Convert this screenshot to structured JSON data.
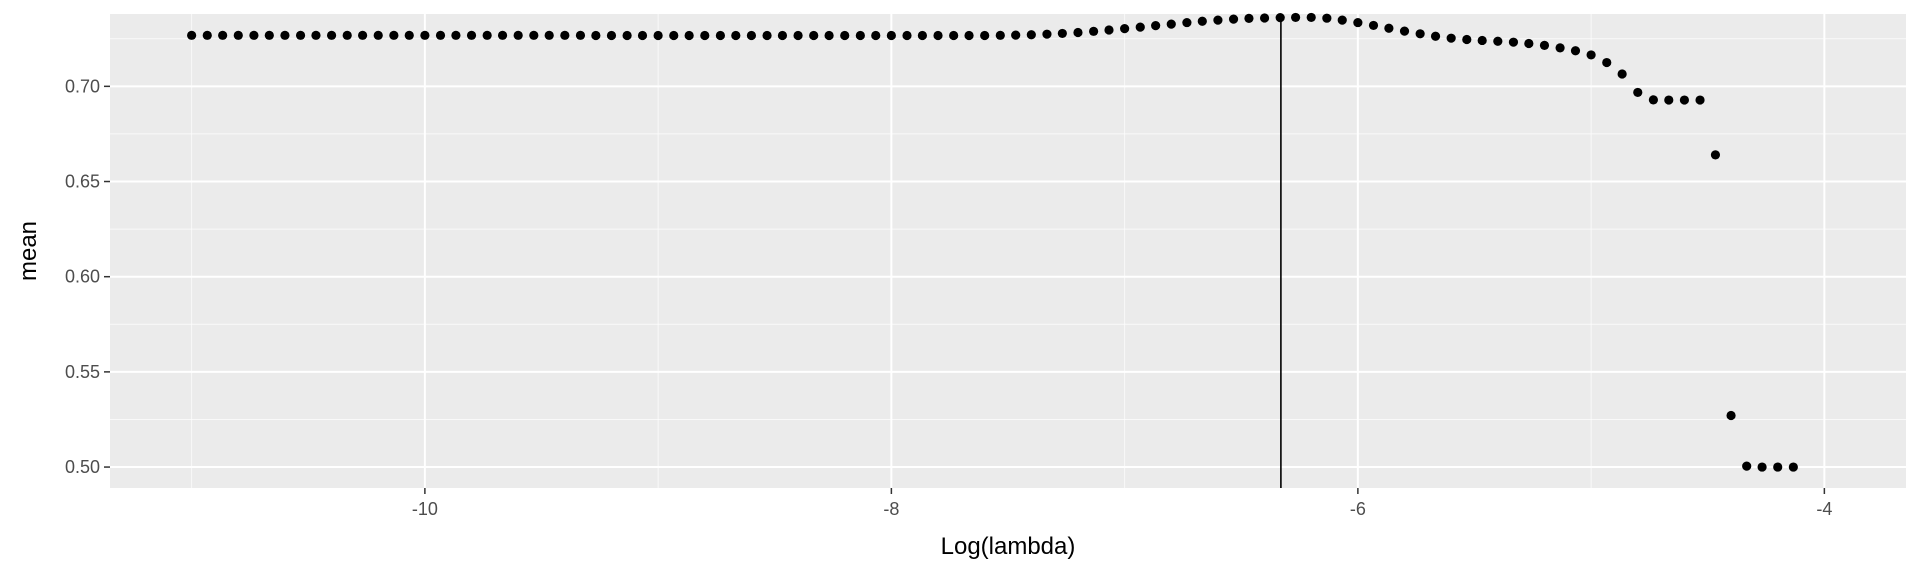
{
  "chart_data": {
    "type": "scatter",
    "title": "",
    "xlabel": "Log(lambda)",
    "ylabel": "mean",
    "xlim": [
      -11.35,
      -3.65
    ],
    "ylim": [
      0.489,
      0.738
    ],
    "x_ticks": [
      -10,
      -8,
      -6,
      -4
    ],
    "x_tick_labels": [
      "-10",
      "-8",
      "-6",
      "-4"
    ],
    "y_ticks": [
      0.5,
      0.55,
      0.6,
      0.65,
      0.7
    ],
    "y_tick_labels": [
      "0.50",
      "0.55",
      "0.60",
      "0.65",
      "0.70"
    ],
    "grid": true,
    "legend": "none",
    "vline_x": -6.33,
    "colors": {
      "panel": "#ebebeb",
      "grid": "#ffffff",
      "point": "#000000",
      "vline": "#000000",
      "tick": "#333333"
    },
    "points": [
      [
        -11.0,
        0.7268
      ],
      [
        -10.933,
        0.7268
      ],
      [
        -10.867,
        0.7268
      ],
      [
        -10.8,
        0.7268
      ],
      [
        -10.733,
        0.7268
      ],
      [
        -10.667,
        0.7268
      ],
      [
        -10.6,
        0.7268
      ],
      [
        -10.533,
        0.7268
      ],
      [
        -10.467,
        0.7268
      ],
      [
        -10.4,
        0.7268
      ],
      [
        -10.333,
        0.7268
      ],
      [
        -10.267,
        0.7268
      ],
      [
        -10.2,
        0.7268
      ],
      [
        -10.133,
        0.7268
      ],
      [
        -10.067,
        0.7268
      ],
      [
        -10.0,
        0.7268
      ],
      [
        -9.933,
        0.7268
      ],
      [
        -9.867,
        0.7268
      ],
      [
        -9.8,
        0.7268
      ],
      [
        -9.733,
        0.7268
      ],
      [
        -9.667,
        0.7268
      ],
      [
        -9.6,
        0.7268
      ],
      [
        -9.533,
        0.7268
      ],
      [
        -9.467,
        0.7268
      ],
      [
        -9.4,
        0.7268
      ],
      [
        -9.333,
        0.7268
      ],
      [
        -9.267,
        0.7267
      ],
      [
        -9.2,
        0.7267
      ],
      [
        -9.133,
        0.7267
      ],
      [
        -9.067,
        0.7267
      ],
      [
        -9.0,
        0.7267
      ],
      [
        -8.933,
        0.7267
      ],
      [
        -8.867,
        0.7267
      ],
      [
        -8.8,
        0.7267
      ],
      [
        -8.733,
        0.7267
      ],
      [
        -8.667,
        0.7267
      ],
      [
        -8.6,
        0.7267
      ],
      [
        -8.533,
        0.7267
      ],
      [
        -8.467,
        0.7267
      ],
      [
        -8.4,
        0.7267
      ],
      [
        -8.333,
        0.7267
      ],
      [
        -8.267,
        0.7267
      ],
      [
        -8.2,
        0.7267
      ],
      [
        -8.133,
        0.7267
      ],
      [
        -8.067,
        0.7267
      ],
      [
        -8.0,
        0.7267
      ],
      [
        -7.933,
        0.7267
      ],
      [
        -7.867,
        0.7267
      ],
      [
        -7.8,
        0.7267
      ],
      [
        -7.733,
        0.7267
      ],
      [
        -7.667,
        0.7267
      ],
      [
        -7.6,
        0.7267
      ],
      [
        -7.533,
        0.7268
      ],
      [
        -7.467,
        0.7269
      ],
      [
        -7.4,
        0.7271
      ],
      [
        -7.333,
        0.7274
      ],
      [
        -7.267,
        0.7278
      ],
      [
        -7.2,
        0.7283
      ],
      [
        -7.133,
        0.7289
      ],
      [
        -7.067,
        0.7296
      ],
      [
        -7.0,
        0.7303
      ],
      [
        -6.933,
        0.7311
      ],
      [
        -6.867,
        0.7319
      ],
      [
        -6.8,
        0.7327
      ],
      [
        -6.733,
        0.7335
      ],
      [
        -6.667,
        0.7342
      ],
      [
        -6.6,
        0.7348
      ],
      [
        -6.533,
        0.7353
      ],
      [
        -6.467,
        0.7357
      ],
      [
        -6.4,
        0.7359
      ],
      [
        -6.333,
        0.7361
      ],
      [
        -6.267,
        0.7362
      ],
      [
        -6.2,
        0.7362
      ],
      [
        -6.133,
        0.7358
      ],
      [
        -6.067,
        0.7348
      ],
      [
        -6.0,
        0.7335
      ],
      [
        -5.933,
        0.732
      ],
      [
        -5.867,
        0.7305
      ],
      [
        -5.8,
        0.729
      ],
      [
        -5.733,
        0.7276
      ],
      [
        -5.667,
        0.7263
      ],
      [
        -5.6,
        0.7253
      ],
      [
        -5.533,
        0.7246
      ],
      [
        -5.467,
        0.7241
      ],
      [
        -5.4,
        0.7237
      ],
      [
        -5.333,
        0.7232
      ],
      [
        -5.267,
        0.7225
      ],
      [
        -5.2,
        0.7215
      ],
      [
        -5.133,
        0.7202
      ],
      [
        -5.067,
        0.7187
      ],
      [
        -5.0,
        0.7165
      ],
      [
        -4.933,
        0.7125
      ],
      [
        -4.867,
        0.7065
      ],
      [
        -4.8,
        0.6968
      ],
      [
        -4.733,
        0.6929
      ],
      [
        -4.667,
        0.6928
      ],
      [
        -4.6,
        0.6928
      ],
      [
        -4.533,
        0.6928
      ],
      [
        -4.467,
        0.664
      ],
      [
        -4.4,
        0.5271
      ],
      [
        -4.333,
        0.5005
      ],
      [
        -4.267,
        0.5
      ],
      [
        -4.2,
        0.5
      ],
      [
        -4.133,
        0.5
      ]
    ]
  }
}
